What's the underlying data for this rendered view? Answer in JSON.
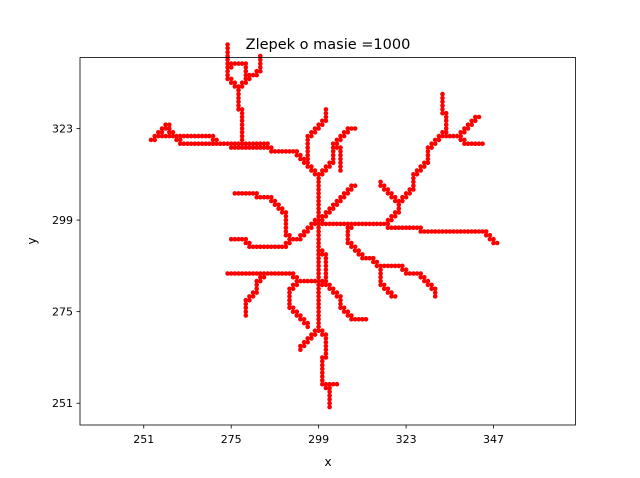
{
  "chart_data": {
    "type": "scatter",
    "title": "Zlepek o masie =1000",
    "xlabel": "x",
    "ylabel": "y",
    "xlim": [
      233.5,
      369.5
    ],
    "ylim": [
      245.3,
      341.6
    ],
    "xticks": [
      251,
      275,
      299,
      323,
      347
    ],
    "yticks": [
      251,
      275,
      299,
      323
    ],
    "grid": false,
    "legend": "none",
    "marker_color": "#ff0000",
    "center": [
      299,
      299
    ],
    "branches": [
      [
        [
          299,
          299
        ],
        [
          299,
          311
        ],
        [
          296,
          321
        ],
        [
          301,
          328
        ]
      ],
      [
        [
          299,
          311
        ],
        [
          287,
          317
        ],
        [
          276,
          318
        ],
        [
          262,
          319
        ]
      ],
      [
        [
          287,
          317
        ],
        [
          272,
          319
        ],
        [
          256,
          321
        ]
      ],
      [
        [
          262,
          319
        ],
        [
          258,
          324
        ],
        [
          253,
          320
        ]
      ],
      [
        [
          299,
          311
        ],
        [
          303,
          319
        ],
        [
          309,
          323
        ]
      ],
      [
        [
          276,
          318
        ],
        [
          278,
          328
        ],
        [
          277,
          334
        ],
        [
          274,
          339
        ],
        [
          274,
          345
        ]
      ],
      [
        [
          277,
          334
        ],
        [
          281,
          337
        ],
        [
          283,
          342
        ]
      ],
      [
        [
          274,
          339
        ],
        [
          278,
          340
        ],
        [
          279,
          335
        ]
      ],
      [
        [
          299,
          299
        ],
        [
          292,
          294
        ],
        [
          281,
          292
        ],
        [
          275,
          294
        ]
      ],
      [
        [
          292,
          294
        ],
        [
          290,
          301
        ],
        [
          283,
          305
        ],
        [
          276,
          306
        ]
      ],
      [
        [
          290,
          301
        ],
        [
          286,
          304
        ]
      ],
      [
        [
          299,
          299
        ],
        [
          299,
          291
        ],
        [
          301,
          282
        ],
        [
          305,
          276
        ],
        [
          312,
          273
        ]
      ],
      [
        [
          301,
          282
        ],
        [
          294,
          283
        ],
        [
          285,
          285
        ],
        [
          274,
          285
        ]
      ],
      [
        [
          285,
          285
        ],
        [
          282,
          280
        ],
        [
          279,
          274
        ]
      ],
      [
        [
          294,
          283
        ],
        [
          291,
          276
        ],
        [
          296,
          271
        ]
      ],
      [
        [
          299,
          291
        ],
        [
          299,
          278
        ],
        [
          299,
          270
        ],
        [
          301,
          263
        ],
        [
          300,
          256
        ],
        [
          302,
          250
        ]
      ],
      [
        [
          300,
          256
        ],
        [
          304,
          256
        ]
      ],
      [
        [
          299,
          270
        ],
        [
          294,
          265
        ]
      ],
      [
        [
          299,
          299
        ],
        [
          309,
          298
        ],
        [
          317,
          298
        ],
        [
          326,
          297
        ],
        [
          337,
          296
        ],
        [
          344,
          296
        ]
      ],
      [
        [
          344,
          296
        ],
        [
          348,
          293
        ]
      ],
      [
        [
          309,
          298
        ],
        [
          307,
          293
        ],
        [
          313,
          289
        ],
        [
          321,
          287
        ],
        [
          326,
          285
        ]
      ],
      [
        [
          313,
          289
        ],
        [
          316,
          282
        ],
        [
          320,
          279
        ]
      ],
      [
        [
          326,
          285
        ],
        [
          331,
          279
        ]
      ],
      [
        [
          317,
          298
        ],
        [
          321,
          304
        ],
        [
          325,
          311
        ],
        [
          329,
          318
        ],
        [
          337,
          321
        ],
        [
          344,
          319
        ]
      ],
      [
        [
          329,
          318
        ],
        [
          334,
          327
        ],
        [
          333,
          332
        ]
      ],
      [
        [
          337,
          321
        ],
        [
          343,
          326
        ]
      ],
      [
        [
          321,
          304
        ],
        [
          316,
          309
        ]
      ],
      [
        [
          299,
          299
        ],
        [
          304,
          304
        ],
        [
          309,
          308
        ]
      ],
      [
        [
          303,
          319
        ],
        [
          305,
          312
        ]
      ]
    ]
  }
}
